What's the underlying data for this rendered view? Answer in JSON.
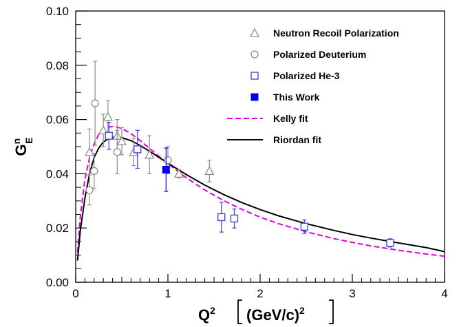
{
  "chart_data": {
    "type": "scatter",
    "xlim": [
      0,
      4
    ],
    "ylim": [
      0,
      0.1
    ],
    "x_ticks": [
      "0",
      "1",
      "2",
      "3",
      "4"
    ],
    "y_ticks": [
      "0.00",
      "0.02",
      "0.04",
      "0.06",
      "0.08",
      "0.10"
    ],
    "xlabel": {
      "main": "Q",
      "sup": "2",
      "unit": "(GeV/c)",
      "unit_sup": "2"
    },
    "ylabel": {
      "main": "G",
      "sup": "n",
      "sub": "E"
    },
    "legend_position": "top-right",
    "series": [
      {
        "name": "Neutron Recoil Polarization",
        "marker": "open-triangle",
        "color": "#8c8c8c",
        "points": [
          {
            "x": 0.15,
            "y": 0.048,
            "err": 0.0085
          },
          {
            "x": 0.3,
            "y": 0.056,
            "err": 0.006
          },
          {
            "x": 0.35,
            "y": 0.061,
            "err": 0.006
          },
          {
            "x": 0.45,
            "y": 0.054,
            "err": 0.006
          },
          {
            "x": 0.5,
            "y": 0.052,
            "err": 0.005
          },
          {
            "x": 0.63,
            "y": 0.048,
            "err": 0.005
          },
          {
            "x": 0.8,
            "y": 0.047,
            "err": 0.007
          },
          {
            "x": 1.12,
            "y": 0.04,
            "err": 0.0015
          },
          {
            "x": 1.45,
            "y": 0.041,
            "err": 0.004
          }
        ]
      },
      {
        "name": "Polarized Deuterium",
        "marker": "open-circle",
        "color": "#8c8c8c",
        "points": [
          {
            "x": 0.15,
            "y": 0.034,
            "err": 0.0055
          },
          {
            "x": 0.2,
            "y": 0.041,
            "err": 0.0065
          },
          {
            "x": 0.21,
            "y": 0.066,
            "err": 0.0155
          },
          {
            "x": 0.45,
            "y": 0.048,
            "err": 0.008
          },
          {
            "x": 1.0,
            "y": 0.045,
            "err": 0.005
          }
        ]
      },
      {
        "name": "Polarized He-3",
        "marker": "open-square",
        "color": "#3b3bd6",
        "points": [
          {
            "x": 0.36,
            "y": 0.054,
            "err": 0.005
          },
          {
            "x": 0.67,
            "y": 0.049,
            "err": 0.007
          },
          {
            "x": 1.58,
            "y": 0.024,
            "err": 0.0055
          },
          {
            "x": 1.72,
            "y": 0.0235,
            "err": 0.0035
          },
          {
            "x": 2.48,
            "y": 0.0205,
            "err": 0.0025
          },
          {
            "x": 3.41,
            "y": 0.0145,
            "err": 0.0015
          }
        ]
      },
      {
        "name": "This Work",
        "marker": "filled-square",
        "color": "#0000ee",
        "points": [
          {
            "x": 0.98,
            "y": 0.0415,
            "err": 0.008
          }
        ]
      },
      {
        "name": "Kelly fit",
        "type": "line",
        "style": "dashed",
        "color": "#e000e0",
        "x": [
          0.02,
          0.05,
          0.1,
          0.15,
          0.2,
          0.25,
          0.3,
          0.35,
          0.4,
          0.45,
          0.5,
          0.6,
          0.7,
          0.8,
          0.9,
          1.0,
          1.2,
          1.4,
          1.6,
          1.8,
          2.0,
          2.2,
          2.5,
          2.8,
          3.0,
          3.2,
          3.5,
          3.8,
          4.0
        ],
        "y": [
          0.011,
          0.024,
          0.038,
          0.046,
          0.051,
          0.0545,
          0.0562,
          0.0571,
          0.0574,
          0.0572,
          0.0567,
          0.0548,
          0.0522,
          0.0494,
          0.0465,
          0.0437,
          0.0385,
          0.034,
          0.0302,
          0.0269,
          0.024,
          0.0216,
          0.0186,
          0.0161,
          0.0147,
          0.0134,
          0.0118,
          0.0104,
          0.0096
        ]
      },
      {
        "name": "Riordan fit",
        "type": "line",
        "style": "solid",
        "color": "#000000",
        "x": [
          0.02,
          0.05,
          0.1,
          0.15,
          0.2,
          0.25,
          0.3,
          0.35,
          0.4,
          0.45,
          0.5,
          0.6,
          0.7,
          0.8,
          0.9,
          1.0,
          1.2,
          1.4,
          1.6,
          1.8,
          2.0,
          2.2,
          2.5,
          2.8,
          3.0,
          3.2,
          3.5,
          3.8,
          4.0
        ],
        "y": [
          0.008,
          0.019,
          0.031,
          0.04,
          0.046,
          0.0495,
          0.0517,
          0.0528,
          0.0534,
          0.0535,
          0.0533,
          0.0522,
          0.0504,
          0.0483,
          0.0461,
          0.0439,
          0.0397,
          0.0358,
          0.0324,
          0.0294,
          0.0268,
          0.0245,
          0.0216,
          0.0191,
          0.0176,
          0.0163,
          0.0145,
          0.0128,
          0.0113
        ]
      }
    ]
  }
}
